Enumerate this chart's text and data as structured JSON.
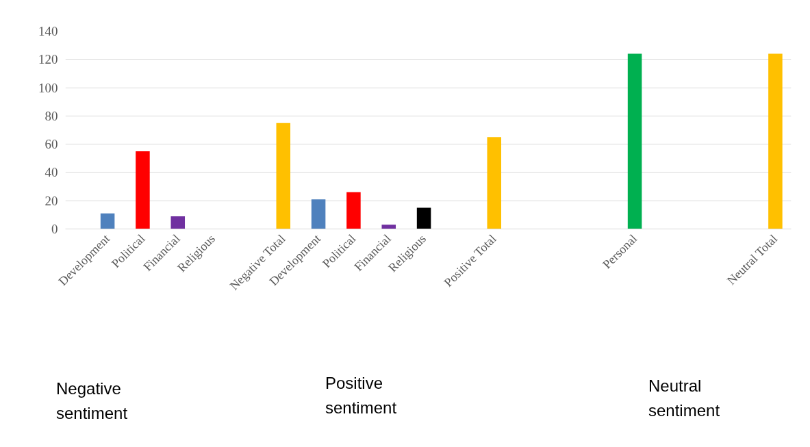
{
  "chart_data": {
    "type": "bar",
    "categories": [
      "Development",
      "Political",
      "Financial",
      "Religious",
      null,
      "Negative Total",
      "Development",
      "Political",
      "Financial",
      "Religious",
      null,
      "Positive Total",
      null,
      null,
      null,
      "Personal",
      null,
      null,
      null,
      "Neutral Total"
    ],
    "values": [
      11,
      55,
      9,
      0,
      null,
      75,
      21,
      26,
      3,
      15,
      null,
      65,
      null,
      null,
      null,
      124,
      null,
      null,
      null,
      124
    ],
    "colors": [
      "#4f81bd",
      "#ff0000",
      "#7030a0",
      "#000000",
      null,
      "#ffc000",
      "#4f81bd",
      "#ff0000",
      "#7030a0",
      "#000000",
      null,
      "#ffc000",
      null,
      null,
      null,
      "#00b050",
      null,
      null,
      null,
      "#ffc000"
    ],
    "ylim": [
      0,
      140
    ],
    "yticks": [
      0,
      20,
      40,
      60,
      80,
      100,
      120,
      140
    ],
    "grid": "y",
    "annotations": [
      "Negative sentiment",
      "Positive sentiment",
      "Neutral sentiment"
    ]
  }
}
